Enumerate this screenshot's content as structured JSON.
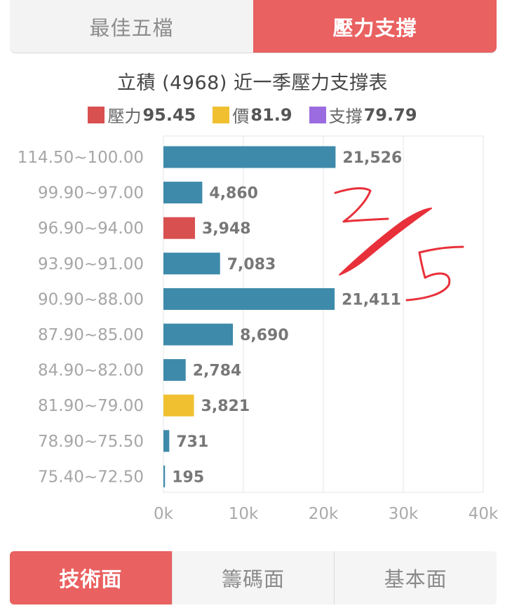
{
  "top_tabs": [
    {
      "label": "最佳五檔",
      "active": false
    },
    {
      "label": "壓力支撐",
      "active": true
    }
  ],
  "chart_title": "立積 (4968) 近一季壓力支撐表",
  "legend": [
    {
      "label": "壓力",
      "value": "95.45",
      "color": "#d95050"
    },
    {
      "label": "價",
      "value": "81.9",
      "color": "#f0c030"
    },
    {
      "label": "支撐",
      "value": "79.79",
      "color": "#9b6ce0"
    }
  ],
  "bottom_tabs": [
    {
      "label": "技術面",
      "active": true
    },
    {
      "label": "籌碼面",
      "active": false
    },
    {
      "label": "基本面",
      "active": false
    }
  ],
  "annotation": "2/5",
  "colors": {
    "bar_default": "#3e8aaa",
    "bar_pressure": "#d95050",
    "bar_price": "#f0c030",
    "accent": "#e96160",
    "handwriting": "#e8303a"
  },
  "chart_data": {
    "type": "bar",
    "orientation": "horizontal",
    "categories": [
      "114.50~100.00",
      "99.90~97.00",
      "96.90~94.00",
      "93.90~91.00",
      "90.90~88.00",
      "87.90~85.00",
      "84.90~82.00",
      "81.90~79.00",
      "78.90~75.50",
      "75.40~72.50"
    ],
    "values": [
      21526,
      4860,
      3948,
      7083,
      21411,
      8690,
      2784,
      3821,
      731,
      195
    ],
    "value_labels": [
      "21,526",
      "4,860",
      "3,948",
      "7,083",
      "21,411",
      "8,690",
      "2,784",
      "3,821",
      "731",
      "195"
    ],
    "highlight": [
      "default",
      "default",
      "pressure",
      "default",
      "default",
      "default",
      "default",
      "price",
      "default",
      "default"
    ],
    "xlim": [
      0,
      40000
    ],
    "ticks": [
      0,
      10000,
      20000,
      30000,
      40000
    ],
    "tick_labels": [
      "0k",
      "10k",
      "20k",
      "30k",
      "40k"
    ],
    "grid": true
  }
}
